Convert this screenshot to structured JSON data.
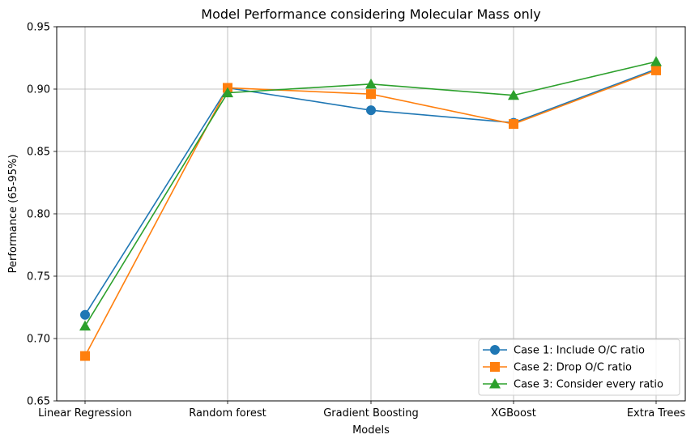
{
  "chart_data": {
    "type": "line",
    "title": "Model Performance considering Molecular Mass only",
    "xlabel": "Models",
    "ylabel": "Performance (65-95%)",
    "categories": [
      "Linear Regression",
      "Random forest",
      "Gradient Boosting",
      "XGBoost",
      "Extra Trees"
    ],
    "ylim": [
      0.65,
      0.95
    ],
    "yticks": [
      "0.65",
      "0.70",
      "0.75",
      "0.80",
      "0.85",
      "0.90",
      "0.95"
    ],
    "grid": true,
    "legend_position": "bottom-right",
    "series": [
      {
        "name": "Case 1: Include O/C ratio",
        "color": "#1f77b4",
        "marker": "circle",
        "values": [
          0.719,
          0.901,
          0.883,
          0.873,
          0.916
        ]
      },
      {
        "name": "Case 2: Drop O/C ratio",
        "color": "#ff7f0e",
        "marker": "square",
        "values": [
          0.686,
          0.901,
          0.896,
          0.872,
          0.915
        ]
      },
      {
        "name": "Case 3: Consider every ratio",
        "color": "#2ca02c",
        "marker": "triangle",
        "values": [
          0.71,
          0.897,
          0.904,
          0.895,
          0.922
        ]
      }
    ]
  }
}
